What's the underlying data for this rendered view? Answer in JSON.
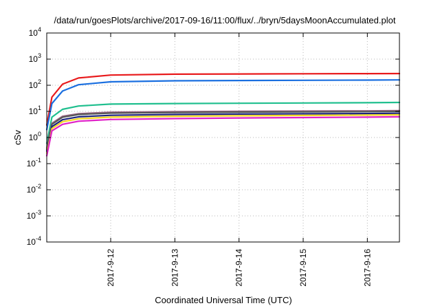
{
  "chart_data": {
    "type": "line",
    "title": "/data/run/goesPlots/archive/2017-09-16/11:00/flux/../bryn/5daysMoonAccumulated.plot",
    "xlabel": "Coordinated Universal Time (UTC)",
    "ylabel": "cSv",
    "yscale": "log",
    "ylim_exp": [
      -4,
      4
    ],
    "y_tick_exponents": [
      -4,
      -3,
      -2,
      -1,
      0,
      1,
      2,
      3,
      4
    ],
    "xlim": [
      "2017-09-11 00:05",
      "2017-09-16 12:00"
    ],
    "x_ticks": [
      "2017-9-12",
      "2017-9-13",
      "2017-9-14",
      "2017-9-15",
      "2017-9-16"
    ],
    "x_tick_dates": [
      "2017-09-12 00:00",
      "2017-09-13 00:00",
      "2017-09-14 00:00",
      "2017-09-15 00:00",
      "2017-09-16 00:00"
    ],
    "grid": true,
    "legend": "none",
    "series": [
      {
        "color": "#e8191b",
        "x": [
          "2017-09-11 00:05",
          "2017-09-11 02:00",
          "2017-09-11 06:00",
          "2017-09-11 12:00",
          "2017-09-12 00:00",
          "2017-09-13 00:00",
          "2017-09-14 00:00",
          "2017-09-15 00:00",
          "2017-09-16 00:00",
          "2017-09-16 12:00"
        ],
        "y": [
          3,
          35,
          110,
          190,
          245,
          265,
          270,
          275,
          278,
          280
        ]
      },
      {
        "color": "#1a6fe0",
        "x": [
          "2017-09-11 00:05",
          "2017-09-11 02:00",
          "2017-09-11 06:00",
          "2017-09-11 12:00",
          "2017-09-12 00:00",
          "2017-09-13 00:00",
          "2017-09-14 00:00",
          "2017-09-15 00:00",
          "2017-09-16 00:00",
          "2017-09-16 12:00"
        ],
        "y": [
          2,
          20,
          60,
          105,
          135,
          148,
          152,
          155,
          158,
          160
        ]
      },
      {
        "color": "#1fbf8e",
        "x": [
          "2017-09-11 00:05",
          "2017-09-11 02:00",
          "2017-09-11 06:00",
          "2017-09-11 12:00",
          "2017-09-12 00:00",
          "2017-09-13 00:00",
          "2017-09-14 00:00",
          "2017-09-15 00:00",
          "2017-09-16 00:00",
          "2017-09-16 12:00"
        ],
        "y": [
          0.6,
          6,
          12,
          16,
          19,
          20,
          20.5,
          21,
          21.5,
          22
        ]
      },
      {
        "color": "#a06a8a",
        "x": [
          "2017-09-11 00:05",
          "2017-09-11 02:00",
          "2017-09-11 06:00",
          "2017-09-11 12:00",
          "2017-09-12 00:00",
          "2017-09-13 00:00",
          "2017-09-14 00:00",
          "2017-09-15 00:00",
          "2017-09-16 00:00",
          "2017-09-16 12:00"
        ],
        "y": [
          0.4,
          3.5,
          6.5,
          8.2,
          9.3,
          9.8,
          10.1,
          10.3,
          10.5,
          10.7
        ]
      },
      {
        "color": "#555555",
        "x": [
          "2017-09-11 00:05",
          "2017-09-11 02:00",
          "2017-09-11 06:00",
          "2017-09-11 12:00",
          "2017-09-12 00:00",
          "2017-09-13 00:00",
          "2017-09-14 00:00",
          "2017-09-15 00:00",
          "2017-09-16 00:00",
          "2017-09-16 12:00"
        ],
        "y": [
          0.35,
          3.2,
          6,
          7.6,
          8.6,
          9.1,
          9.4,
          9.6,
          9.8,
          10
        ]
      },
      {
        "color": "#1a237e",
        "x": [
          "2017-09-11 00:05",
          "2017-09-11 02:00",
          "2017-09-11 06:00",
          "2017-09-11 12:00",
          "2017-09-12 00:00",
          "2017-09-13 00:00",
          "2017-09-14 00:00",
          "2017-09-15 00:00",
          "2017-09-16 00:00",
          "2017-09-16 12:00"
        ],
        "y": [
          0.3,
          2.6,
          4.8,
          6.2,
          7.1,
          7.6,
          7.9,
          8.1,
          8.3,
          8.5
        ]
      },
      {
        "color": "#f2d51f",
        "x": [
          "2017-09-11 00:05",
          "2017-09-11 02:00",
          "2017-09-11 06:00",
          "2017-09-11 12:00",
          "2017-09-12 00:00",
          "2017-09-13 00:00",
          "2017-09-14 00:00",
          "2017-09-15 00:00",
          "2017-09-16 00:00",
          "2017-09-16 12:00"
        ],
        "y": [
          0.25,
          2.2,
          4,
          5.2,
          6,
          6.5,
          6.8,
          7,
          7.2,
          7.4
        ]
      },
      {
        "color": "#e020c8",
        "x": [
          "2017-09-11 00:05",
          "2017-09-11 02:00",
          "2017-09-11 06:00",
          "2017-09-11 12:00",
          "2017-09-12 00:00",
          "2017-09-13 00:00",
          "2017-09-14 00:00",
          "2017-09-15 00:00",
          "2017-09-16 00:00",
          "2017-09-16 12:00"
        ],
        "y": [
          0.2,
          1.8,
          3.2,
          4.2,
          4.9,
          5.3,
          5.6,
          5.8,
          6,
          6.2
        ]
      }
    ]
  }
}
